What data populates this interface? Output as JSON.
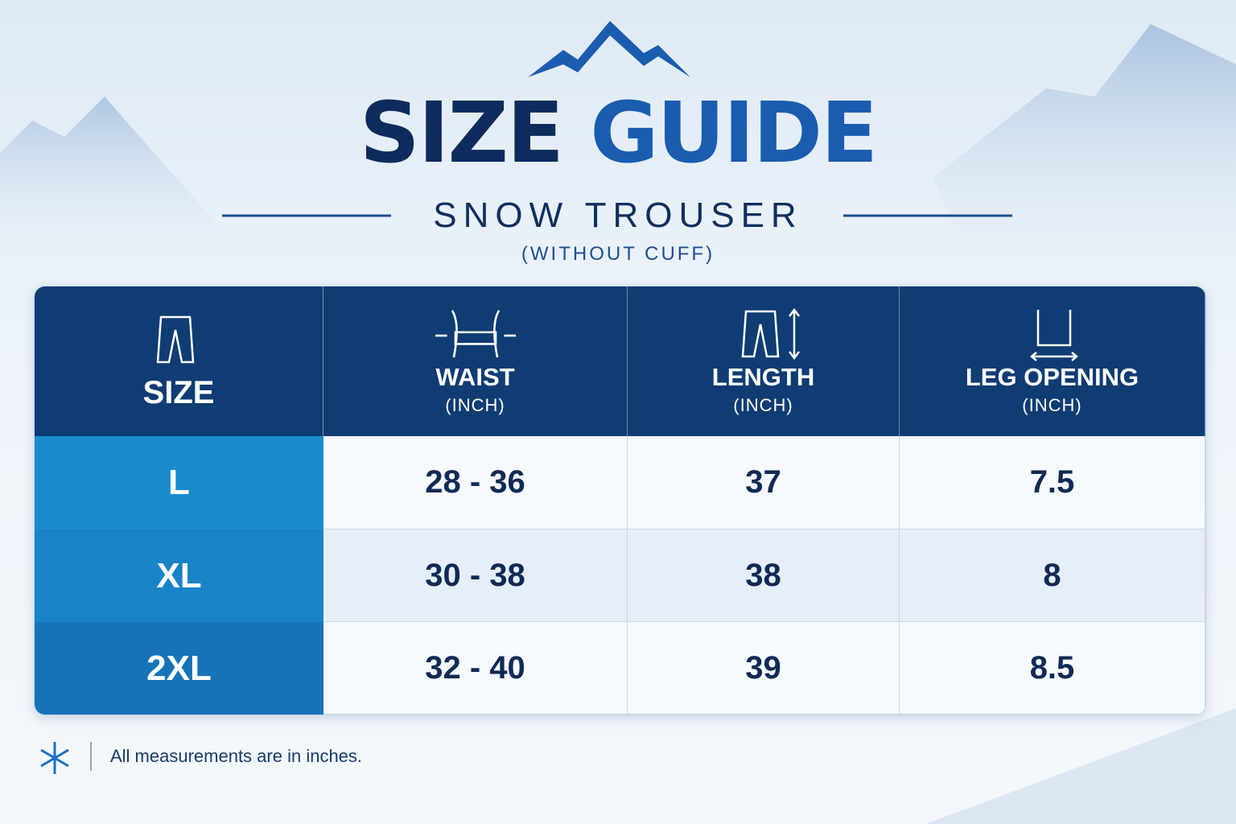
{
  "header": {
    "title_dark": "SIZE",
    "title_blue": "GUIDE",
    "subtitle": "SNOW TROUSER",
    "note": "(WITHOUT CUFF)"
  },
  "table": {
    "columns": [
      {
        "label": "SIZE"
      },
      {
        "label": "WAIST",
        "unit": "(INCH)"
      },
      {
        "label": "LENGTH",
        "unit": "(INCH)"
      },
      {
        "label": "LEG OPENING",
        "unit": "(INCH)"
      }
    ],
    "rows": [
      [
        "L",
        "28 - 36",
        "37",
        "7.5"
      ],
      [
        "XL",
        "30 - 38",
        "38",
        "8"
      ],
      [
        "2XL",
        "32 - 40",
        "39",
        "8.5"
      ]
    ]
  },
  "footer": {
    "text": "All measurements are in inches."
  }
}
